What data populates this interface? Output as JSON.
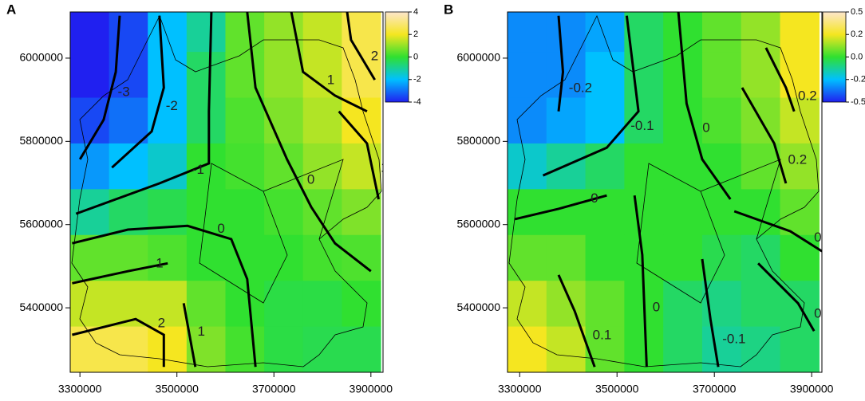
{
  "chart_data": [
    {
      "type": "heatmap",
      "panel_label": "A",
      "xlim": [
        3280000,
        3925000
      ],
      "ylim": [
        5245000,
        6111000
      ],
      "xticks": [
        3300000,
        3500000,
        3700000,
        3900000
      ],
      "yticks": [
        5400000,
        5600000,
        5800000,
        6000000
      ],
      "grid_x": [
        3320000,
        3400000,
        3480000,
        3560000,
        3640000,
        3720000,
        3800000,
        3880000
      ],
      "grid_y": [
        6070000,
        5960000,
        5850000,
        5740000,
        5630000,
        5520000,
        5410000,
        5300000
      ],
      "z": [
        [
          -4,
          -3.5,
          -2,
          -1,
          0.5,
          1,
          1.5,
          2.5
        ],
        [
          -4,
          -3.5,
          -2,
          -0.5,
          0.5,
          1,
          1.5,
          2.5
        ],
        [
          -3.5,
          -3,
          -2,
          -0.5,
          0.3,
          0.8,
          1.3,
          2
        ],
        [
          -2.5,
          -2,
          -1.5,
          0,
          0.2,
          0.5,
          1,
          1.5
        ],
        [
          -1,
          -0.5,
          -0.3,
          0,
          0,
          0.2,
          0.5,
          0.8
        ],
        [
          0.5,
          0.5,
          0.3,
          0,
          0,
          0,
          0.2,
          0.3
        ],
        [
          1.5,
          1.5,
          1.5,
          0.5,
          0,
          -0.2,
          -0.2,
          0
        ],
        [
          2.5,
          2.5,
          2,
          0.8,
          0.2,
          -0.2,
          -0.3,
          -0.3
        ]
      ],
      "colorbar": {
        "ticks": [
          -4,
          -2,
          0,
          2,
          4
        ],
        "colors": [
          "#2020f0",
          "#00c0ff",
          "#30e030",
          "#f5e620",
          "#fde6cc"
        ]
      },
      "contours": [
        {
          "level": -3,
          "x": [
            3382000,
            3374000,
            3349000,
            3300000
          ],
          "y": [
            6102000,
            5967000,
            5852000,
            5757000
          ]
        },
        {
          "level": -2,
          "x": [
            3464000,
            3473000,
            3448000,
            3366000
          ],
          "y": [
            6102000,
            5929000,
            5824000,
            5737000
          ]
        },
        {
          "level": -1,
          "x": [
            3571000,
            3566000,
            3566000,
            3464000,
            3292000
          ],
          "y": [
            6111000,
            5872000,
            5747000,
            5699000,
            5626000
          ]
        },
        {
          "level": 0,
          "x": [
            3284000,
            3399000,
            3522000,
            3612000,
            3645000,
            3662000
          ],
          "y": [
            5555000,
            5588000,
            5597000,
            5565000,
            5469000,
            5258000
          ]
        },
        {
          "level": 1,
          "x": [
            3284000,
            3399000,
            3481000
          ],
          "y": [
            5459000,
            5488000,
            5507000
          ]
        },
        {
          "level": 1,
          "x": [
            3514000,
            3538000
          ],
          "y": [
            5411000,
            5258000
          ]
        },
        {
          "level": 2,
          "x": [
            3284000,
            3415000,
            3473000,
            3473000
          ],
          "y": [
            5335000,
            5373000,
            5335000,
            5258000
          ]
        },
        {
          "level": 0,
          "x": [
            3645000,
            3662000,
            3727000,
            3777000,
            3826000,
            3900000
          ],
          "y": [
            6111000,
            5929000,
            5757000,
            5642000,
            5555000,
            5488000
          ]
        },
        {
          "level": 1,
          "x": [
            3736000,
            3760000,
            3826000,
            3892000
          ],
          "y": [
            6111000,
            5967000,
            5910000,
            5872000
          ]
        },
        {
          "level": 2,
          "x": [
            3851000,
            3859000,
            3908000
          ],
          "y": [
            6111000,
            6044000,
            5948000
          ]
        },
        {
          "level": 1,
          "x": [
            3834000,
            3892000,
            3916000
          ],
          "y": [
            5872000,
            5795000,
            5661000
          ]
        }
      ]
    },
    {
      "type": "heatmap",
      "panel_label": "B",
      "xlim": [
        3275000,
        3921000
      ],
      "ylim": [
        5245000,
        6111000
      ],
      "xticks": [
        3300000,
        3500000,
        3700000,
        3900000
      ],
      "yticks": [
        5400000,
        5600000,
        5800000,
        6000000
      ],
      "grid_x": [
        3315000,
        3395000,
        3475000,
        3555000,
        3635000,
        3715000,
        3795000,
        3875000
      ],
      "grid_y": [
        6070000,
        5960000,
        5850000,
        5740000,
        5630000,
        5520000,
        5410000,
        5300000
      ],
      "z": [
        [
          -0.3,
          -0.3,
          -0.25,
          -0.05,
          0,
          0.05,
          0.1,
          0.2
        ],
        [
          -0.3,
          -0.3,
          -0.2,
          -0.05,
          0,
          0.05,
          0.1,
          0.2
        ],
        [
          -0.3,
          -0.25,
          -0.2,
          -0.05,
          0,
          0.03,
          0.08,
          0.15
        ],
        [
          -0.15,
          -0.1,
          -0.05,
          0,
          0,
          0,
          0.05,
          0.1
        ],
        [
          0,
          0,
          0,
          0,
          0,
          0,
          0,
          0.05
        ],
        [
          0.05,
          0.05,
          0,
          0,
          0,
          -0.03,
          -0.05,
          0
        ],
        [
          0.15,
          0.1,
          0.05,
          0,
          -0.05,
          -0.08,
          -0.05,
          -0.05
        ],
        [
          0.2,
          0.15,
          0.05,
          0,
          -0.05,
          -0.1,
          -0.08,
          -0.05
        ]
      ],
      "colorbar": {
        "ticks": [
          -0.5,
          -0.2,
          {
            "value": 0,
            "label": "0.0"
          },
          0.2,
          0.5
        ],
        "colors": [
          "#2020f0",
          "#00c0ff",
          "#30e030",
          "#f5e620",
          "#fde6cc"
        ]
      },
      "contours": [
        {
          "level": -0.2,
          "x": [
            3380000,
            3389000,
            3380000
          ],
          "y": [
            6102000,
            5967000,
            5872000
          ]
        },
        {
          "level": -0.1,
          "x": [
            3348000,
            3479000,
            3544000,
            3520000
          ],
          "y": [
            5718000,
            5785000,
            5872000,
            6102000
          ]
        },
        {
          "level": 0,
          "x": [
            3290000,
            3380000,
            3479000
          ],
          "y": [
            5613000,
            5638000,
            5670000
          ]
        },
        {
          "level": 0,
          "x": [
            3536000,
            3552000,
            3561000
          ],
          "y": [
            5670000,
            5527000,
            5258000
          ]
        },
        {
          "level": 0.1,
          "x": [
            3380000,
            3413000,
            3454000
          ],
          "y": [
            5479000,
            5392000,
            5258000
          ]
        },
        {
          "level": -0.1,
          "x": [
            3675000,
            3692000,
            3708000
          ],
          "y": [
            5517000,
            5373000,
            5258000
          ]
        },
        {
          "level": 0,
          "x": [
            3790000,
            3872000,
            3905000
          ],
          "y": [
            5507000,
            5411000,
            5344000
          ]
        },
        {
          "level": 0,
          "x": [
            3626000,
            3643000,
            3675000,
            3733000
          ],
          "y": [
            6111000,
            5891000,
            5757000,
            5661000
          ]
        },
        {
          "level": 0.2,
          "x": [
            3806000,
            3847000,
            3864000
          ],
          "y": [
            6025000,
            5929000,
            5872000
          ]
        },
        {
          "level": 0.2,
          "x": [
            3757000,
            3823000,
            3847000
          ],
          "y": [
            5929000,
            5795000,
            5699000
          ]
        },
        {
          "level": 0,
          "x": [
            3741000,
            3856000,
            3921000
          ],
          "y": [
            5632000,
            5584000,
            5536000
          ]
        }
      ]
    }
  ]
}
